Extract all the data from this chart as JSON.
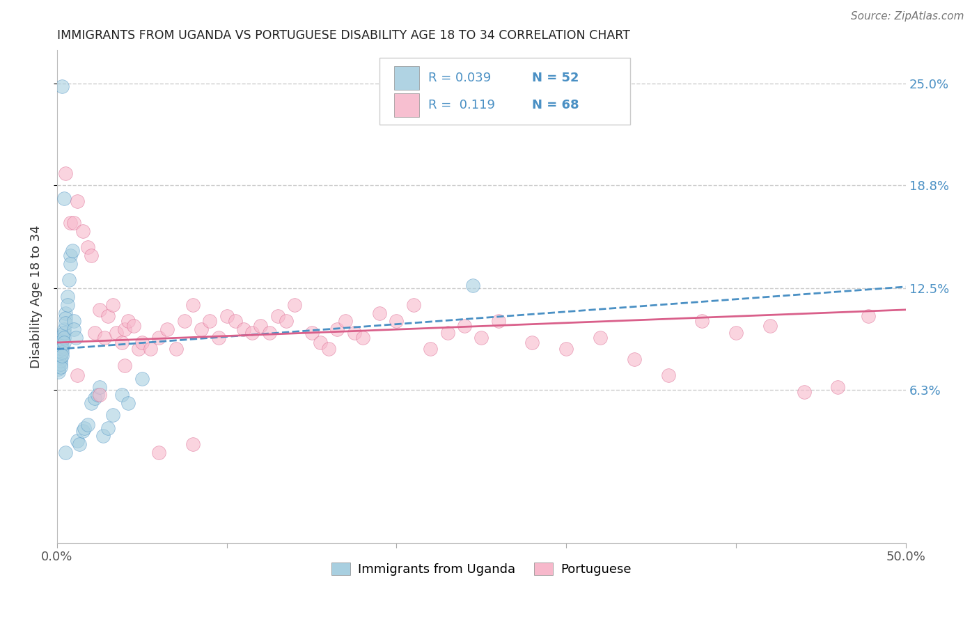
{
  "title": "IMMIGRANTS FROM UGANDA VS PORTUGUESE DISABILITY AGE 18 TO 34 CORRELATION CHART",
  "source": "Source: ZipAtlas.com",
  "ylabel": "Disability Age 18 to 34",
  "xlim": [
    0.0,
    0.5
  ],
  "ylim": [
    -0.03,
    0.27
  ],
  "ytick_positions": [
    0.063,
    0.125,
    0.188,
    0.25
  ],
  "ytick_labels": [
    "6.3%",
    "12.5%",
    "18.8%",
    "25.0%"
  ],
  "xtick_positions": [
    0.0,
    0.1,
    0.2,
    0.3,
    0.4,
    0.5
  ],
  "legend_labels": [
    "Immigrants from Uganda",
    "Portuguese"
  ],
  "R_blue_text": "R = 0.039",
  "N_blue_text": "N = 52",
  "R_pink_text": "R =  0.119",
  "N_pink_text": "N = 68",
  "color_blue_fill": "#a8cfe0",
  "color_pink_fill": "#f7b8cb",
  "color_blue_line": "#4a90c4",
  "color_pink_line": "#d95f8a",
  "color_right_axis": "#4a90c4",
  "color_legend_text": "#4a90c4",
  "grid_color": "#cccccc",
  "background": "#ffffff",
  "ug_x": [
    0.001,
    0.001,
    0.001,
    0.001,
    0.001,
    0.002,
    0.002,
    0.002,
    0.002,
    0.002,
    0.002,
    0.003,
    0.003,
    0.003,
    0.003,
    0.003,
    0.003,
    0.004,
    0.004,
    0.004,
    0.004,
    0.005,
    0.005,
    0.005,
    0.006,
    0.006,
    0.007,
    0.008,
    0.008,
    0.009,
    0.01,
    0.01,
    0.011,
    0.012,
    0.013,
    0.015,
    0.016,
    0.018,
    0.02,
    0.022,
    0.024,
    0.025,
    0.027,
    0.03,
    0.033,
    0.038,
    0.042,
    0.05,
    0.003,
    0.004,
    0.245,
    0.005
  ],
  "ug_y": [
    0.082,
    0.08,
    0.078,
    0.076,
    0.074,
    0.088,
    0.085,
    0.083,
    0.081,
    0.079,
    0.077,
    0.096,
    0.093,
    0.09,
    0.088,
    0.086,
    0.084,
    0.1,
    0.098,
    0.095,
    0.092,
    0.11,
    0.107,
    0.104,
    0.12,
    0.115,
    0.13,
    0.145,
    0.14,
    0.148,
    0.105,
    0.1,
    0.095,
    0.032,
    0.03,
    0.038,
    0.04,
    0.042,
    0.055,
    0.058,
    0.06,
    0.065,
    0.035,
    0.04,
    0.048,
    0.06,
    0.055,
    0.07,
    0.248,
    0.18,
    0.127,
    0.025
  ],
  "pt_x": [
    0.005,
    0.008,
    0.01,
    0.012,
    0.015,
    0.018,
    0.02,
    0.022,
    0.025,
    0.028,
    0.03,
    0.033,
    0.035,
    0.038,
    0.04,
    0.042,
    0.045,
    0.048,
    0.05,
    0.055,
    0.06,
    0.065,
    0.07,
    0.075,
    0.08,
    0.085,
    0.09,
    0.095,
    0.1,
    0.105,
    0.11,
    0.115,
    0.12,
    0.125,
    0.13,
    0.135,
    0.14,
    0.15,
    0.155,
    0.16,
    0.165,
    0.17,
    0.175,
    0.18,
    0.19,
    0.2,
    0.21,
    0.22,
    0.23,
    0.24,
    0.25,
    0.26,
    0.28,
    0.3,
    0.32,
    0.34,
    0.36,
    0.38,
    0.4,
    0.42,
    0.44,
    0.46,
    0.478,
    0.012,
    0.025,
    0.04,
    0.06,
    0.08
  ],
  "pt_y": [
    0.195,
    0.165,
    0.165,
    0.178,
    0.16,
    0.15,
    0.145,
    0.098,
    0.112,
    0.095,
    0.108,
    0.115,
    0.098,
    0.092,
    0.1,
    0.105,
    0.102,
    0.088,
    0.092,
    0.088,
    0.095,
    0.1,
    0.088,
    0.105,
    0.115,
    0.1,
    0.105,
    0.095,
    0.108,
    0.105,
    0.1,
    0.098,
    0.102,
    0.098,
    0.108,
    0.105,
    0.115,
    0.098,
    0.092,
    0.088,
    0.1,
    0.105,
    0.098,
    0.095,
    0.11,
    0.105,
    0.115,
    0.088,
    0.098,
    0.102,
    0.095,
    0.105,
    0.092,
    0.088,
    0.095,
    0.082,
    0.072,
    0.105,
    0.098,
    0.102,
    0.062,
    0.065,
    0.108,
    0.072,
    0.06,
    0.078,
    0.025,
    0.03
  ],
  "ug_trend_x": [
    0.0,
    0.5
  ],
  "ug_trend_y": [
    0.088,
    0.126
  ],
  "pt_trend_x": [
    0.0,
    0.5
  ],
  "pt_trend_y": [
    0.092,
    0.112
  ]
}
